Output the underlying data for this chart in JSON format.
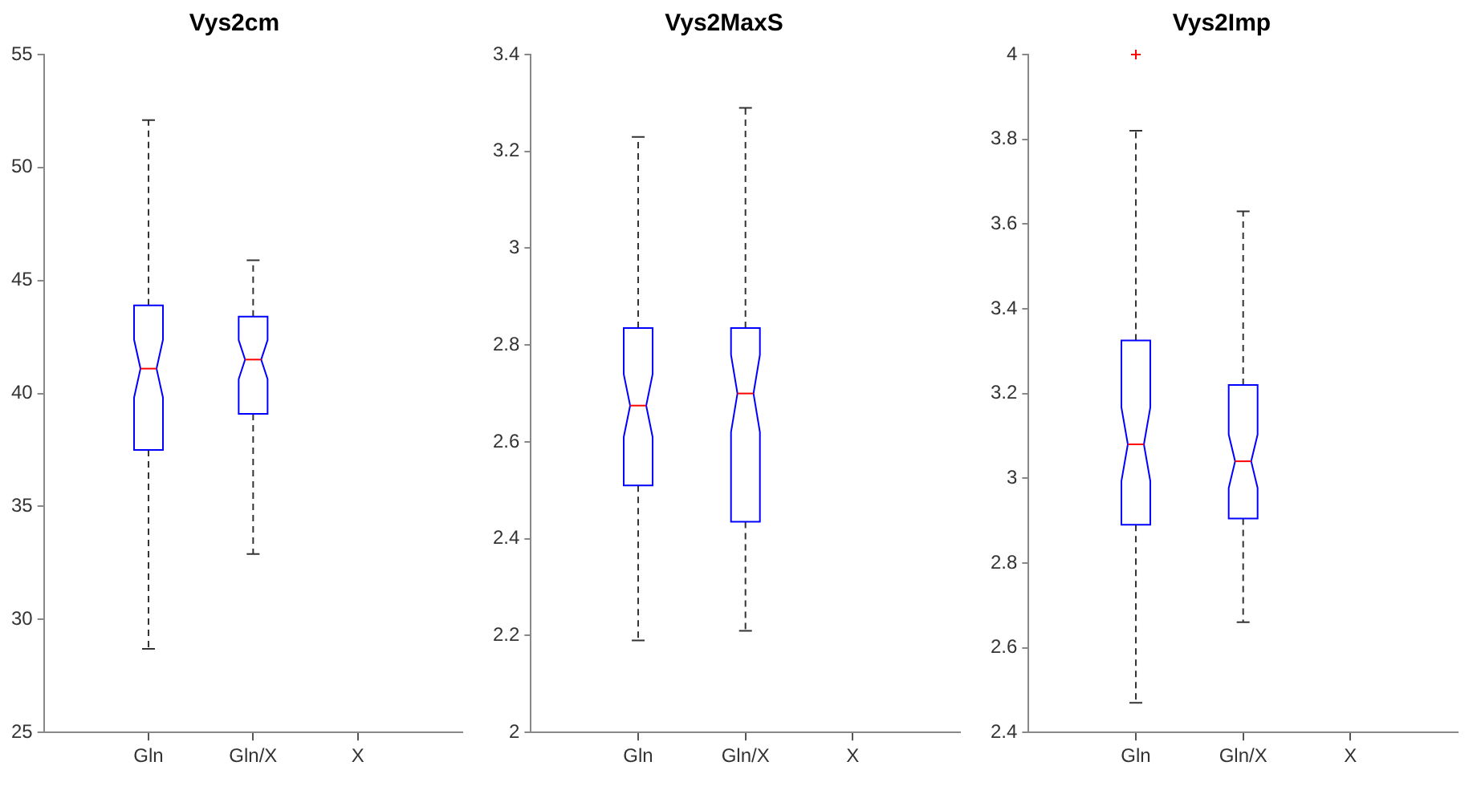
{
  "chart_data": [
    {
      "type": "box",
      "title": "Vys2cm",
      "categories": [
        "Gln",
        "Gln/X",
        "X"
      ],
      "ylim": [
        25,
        55
      ],
      "yticks": [
        25,
        30,
        35,
        40,
        45,
        50,
        55
      ],
      "grid": false,
      "series": [
        {
          "color": "#0000ff",
          "boxes": [
            {
              "low": 28.7,
              "q1": 37.5,
              "median": 41.1,
              "q3": 43.9,
              "high": 52.1
            },
            {
              "low": 32.9,
              "q1": 39.1,
              "median": 41.5,
              "q3": 43.4,
              "high": 45.9
            },
            null
          ]
        }
      ]
    },
    {
      "type": "box",
      "title": "Vys2MaxS",
      "categories": [
        "Gln",
        "Gln/X",
        "X"
      ],
      "ylim": [
        2,
        3.4
      ],
      "yticks": [
        2,
        2.2,
        2.4,
        2.6,
        2.8,
        3,
        3.2,
        3.4
      ],
      "grid": false,
      "series": [
        {
          "color": "#0000ff",
          "boxes": [
            {
              "low": 2.19,
              "q1": 2.51,
              "median": 2.675,
              "q3": 2.835,
              "high": 3.23
            },
            {
              "low": 2.21,
              "q1": 2.435,
              "median": 2.7,
              "q3": 2.835,
              "high": 3.29
            },
            null
          ]
        }
      ]
    },
    {
      "type": "box",
      "title": "Vys2Imp",
      "categories": [
        "Gln",
        "Gln/X",
        "X"
      ],
      "ylim": [
        2.4,
        4
      ],
      "yticks": [
        2.4,
        2.6,
        2.8,
        3,
        3.2,
        3.4,
        3.6,
        3.8,
        4
      ],
      "grid": false,
      "series": [
        {
          "color": "#0000ff",
          "boxes": [
            {
              "low": 2.47,
              "q1": 2.89,
              "median": 3.08,
              "q3": 3.325,
              "high": 3.82,
              "outliers": [
                4
              ]
            },
            {
              "low": 2.66,
              "q1": 2.905,
              "median": 3.04,
              "q3": 3.22,
              "high": 3.63
            },
            null
          ]
        }
      ]
    }
  ]
}
